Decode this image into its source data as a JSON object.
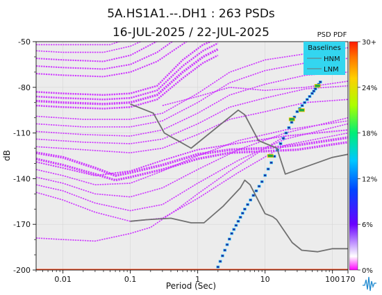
{
  "chart_data": {
    "type": "heatmap",
    "title": "5A.HS1A1.--.DH1 : 263 PSDs",
    "subtitle": "16-JUL-2025 / 22-JUL-2025",
    "xlabel": "Period (Sec)",
    "ylabel": "dB",
    "x_scale": "log",
    "xlim": [
      0.004,
      170
    ],
    "ylim": [
      -200,
      -50
    ],
    "x_ticks": [
      {
        "value": 0.01,
        "label": "0.01"
      },
      {
        "value": 0.1,
        "label": "0.1"
      },
      {
        "value": 1,
        "label": "1"
      },
      {
        "value": 10,
        "label": "10"
      },
      {
        "value": 100,
        "label": "100"
      },
      {
        "value": 170,
        "label": "170"
      }
    ],
    "y_ticks": [
      {
        "value": -50,
        "label": "-50"
      },
      {
        "value": -80,
        "label": "-80"
      },
      {
        "value": -110,
        "label": "-110"
      },
      {
        "value": -140,
        "label": "-140"
      },
      {
        "value": -170,
        "label": "-170"
      },
      {
        "value": -200,
        "label": "-200"
      }
    ],
    "colorbar": {
      "title": "PSD PDF",
      "ticks": [
        "30+",
        "24%",
        "18%",
        "12%",
        "6%",
        "0%"
      ]
    },
    "legend": {
      "title": "Baselines",
      "position": "top-right",
      "entries": [
        "HNM",
        "LNM"
      ],
      "background": "#33d6f0"
    },
    "colors": {
      "psd_band": "#cc33ff",
      "baseline": "#707070",
      "plot_background": "#ececec"
    },
    "baselines": {
      "HNM": {
        "points": [
          [
            0.1,
            -91
          ],
          [
            0.22,
            -97
          ],
          [
            0.32,
            -110
          ],
          [
            0.8,
            -120
          ],
          [
            4,
            -95
          ],
          [
            5,
            -98
          ],
          [
            8,
            -115
          ],
          [
            15,
            -120
          ],
          [
            20,
            -137
          ],
          [
            100,
            -126
          ],
          [
            170,
            -124
          ]
        ]
      },
      "LNM": {
        "points": [
          [
            0.1,
            -168
          ],
          [
            0.17,
            -167
          ],
          [
            0.4,
            -166
          ],
          [
            0.8,
            -169
          ],
          [
            1.24,
            -169
          ],
          [
            2.4,
            -158
          ],
          [
            4.3,
            -146
          ],
          [
            5,
            -141
          ],
          [
            6,
            -144
          ],
          [
            10,
            -163
          ],
          [
            13,
            -165
          ],
          [
            14.9,
            -167
          ],
          [
            25.3,
            -182
          ],
          [
            35,
            -187
          ],
          [
            60,
            -188
          ],
          [
            100,
            -186
          ],
          [
            170,
            -186
          ]
        ]
      }
    },
    "psd_bands": [
      {
        "pct": 6,
        "points": [
          [
            0.004,
            -83
          ],
          [
            0.01,
            -84
          ],
          [
            0.04,
            -85
          ],
          [
            0.1,
            -84
          ],
          [
            0.25,
            -79
          ],
          [
            0.6,
            -62
          ],
          [
            1.2,
            -52
          ],
          [
            2,
            -48
          ]
        ]
      },
      {
        "pct": 6,
        "points": [
          [
            0.004,
            -86
          ],
          [
            0.01,
            -87
          ],
          [
            0.04,
            -88
          ],
          [
            0.1,
            -87
          ],
          [
            0.25,
            -82
          ],
          [
            0.6,
            -66
          ],
          [
            1.2,
            -56
          ],
          [
            2,
            -51
          ]
        ]
      },
      {
        "pct": 8,
        "points": [
          [
            0.004,
            -89
          ],
          [
            0.01,
            -90
          ],
          [
            0.04,
            -91
          ],
          [
            0.1,
            -90
          ],
          [
            0.25,
            -85
          ],
          [
            0.6,
            -70
          ],
          [
            1.2,
            -60
          ],
          [
            2,
            -55
          ]
        ]
      },
      {
        "pct": 6,
        "points": [
          [
            0.004,
            -92
          ],
          [
            0.01,
            -93
          ],
          [
            0.04,
            -94
          ],
          [
            0.1,
            -93
          ],
          [
            0.25,
            -88
          ],
          [
            0.6,
            -74
          ],
          [
            1.2,
            -64
          ],
          [
            2,
            -59
          ]
        ]
      },
      {
        "pct": 5,
        "points": [
          [
            0.004,
            -71
          ],
          [
            0.01,
            -72
          ],
          [
            0.04,
            -73
          ],
          [
            0.1,
            -70
          ],
          [
            0.25,
            -63
          ],
          [
            0.5,
            -54
          ],
          [
            0.8,
            -48
          ]
        ]
      },
      {
        "pct": 5,
        "points": [
          [
            0.004,
            -66
          ],
          [
            0.01,
            -67
          ],
          [
            0.04,
            -68
          ],
          [
            0.1,
            -65
          ],
          [
            0.25,
            -57
          ],
          [
            0.45,
            -49
          ]
        ]
      },
      {
        "pct": 5,
        "points": [
          [
            0.004,
            -61
          ],
          [
            0.01,
            -62
          ],
          [
            0.04,
            -63
          ],
          [
            0.1,
            -59
          ],
          [
            0.2,
            -52
          ],
          [
            0.3,
            -48
          ]
        ]
      },
      {
        "pct": 4,
        "points": [
          [
            0.004,
            -56
          ],
          [
            0.01,
            -57
          ],
          [
            0.04,
            -57
          ],
          [
            0.1,
            -53
          ],
          [
            0.18,
            -48
          ]
        ]
      },
      {
        "pct": 4,
        "points": [
          [
            0.004,
            -52
          ],
          [
            0.01,
            -52
          ],
          [
            0.05,
            -52
          ],
          [
            0.08,
            -49
          ]
        ]
      },
      {
        "pct": 4,
        "points": [
          [
            0.004,
            -99
          ],
          [
            0.02,
            -101
          ],
          [
            0.1,
            -101
          ],
          [
            0.3,
            -97
          ],
          [
            1,
            -84
          ],
          [
            3,
            -70
          ],
          [
            10,
            -62
          ],
          [
            40,
            -58
          ],
          [
            170,
            -54
          ]
        ]
      },
      {
        "pct": 4,
        "points": [
          [
            0.004,
            -104
          ],
          [
            0.02,
            -106
          ],
          [
            0.1,
            -106
          ],
          [
            0.3,
            -102
          ],
          [
            1,
            -90
          ],
          [
            3,
            -77
          ],
          [
            10,
            -69
          ],
          [
            40,
            -64
          ],
          [
            170,
            -61
          ]
        ]
      },
      {
        "pct": 4,
        "points": [
          [
            0.004,
            -109
          ],
          [
            0.02,
            -111
          ],
          [
            0.1,
            -112
          ],
          [
            0.3,
            -108
          ],
          [
            1,
            -97
          ],
          [
            3,
            -85
          ],
          [
            10,
            -78
          ],
          [
            40,
            -72
          ],
          [
            170,
            -70
          ]
        ]
      },
      {
        "pct": 4,
        "points": [
          [
            0.004,
            -114
          ],
          [
            0.02,
            -116
          ],
          [
            0.1,
            -117
          ],
          [
            0.3,
            -114
          ],
          [
            1,
            -104
          ],
          [
            3,
            -93
          ],
          [
            10,
            -87
          ],
          [
            40,
            -81
          ],
          [
            170,
            -79
          ]
        ]
      },
      {
        "pct": 4,
        "points": [
          [
            0.004,
            -119
          ],
          [
            0.02,
            -121
          ],
          [
            0.1,
            -123
          ],
          [
            0.3,
            -120
          ],
          [
            1,
            -111
          ],
          [
            3,
            -101
          ],
          [
            10,
            -96
          ],
          [
            40,
            -90
          ],
          [
            170,
            -88
          ]
        ]
      },
      {
        "pct": 4,
        "points": [
          [
            0.3,
            -92
          ],
          [
            1,
            -86
          ],
          [
            3,
            -80
          ],
          [
            10,
            -82
          ],
          [
            40,
            -80
          ],
          [
            170,
            -76
          ]
        ]
      },
      {
        "pct": 9,
        "points": [
          [
            0.004,
            -123
          ],
          [
            0.01,
            -126
          ],
          [
            0.03,
            -133
          ],
          [
            0.06,
            -138
          ],
          [
            0.1,
            -136
          ],
          [
            0.3,
            -131
          ],
          [
            1,
            -124
          ],
          [
            3,
            -121
          ],
          [
            10,
            -120
          ],
          [
            30,
            -118
          ],
          [
            170,
            -113
          ]
        ]
      },
      {
        "pct": 8,
        "points": [
          [
            0.004,
            -127
          ],
          [
            0.01,
            -131
          ],
          [
            0.03,
            -137
          ],
          [
            0.06,
            -141
          ],
          [
            0.1,
            -139
          ],
          [
            0.3,
            -134
          ],
          [
            1,
            -127
          ],
          [
            3,
            -123
          ],
          [
            10,
            -122
          ],
          [
            30,
            -121
          ],
          [
            170,
            -116
          ]
        ]
      },
      {
        "pct": 5,
        "points": [
          [
            0.004,
            -129
          ],
          [
            0.01,
            -133
          ],
          [
            0.03,
            -138
          ],
          [
            0.1,
            -135
          ],
          [
            0.3,
            -128
          ],
          [
            1,
            -121
          ],
          [
            5,
            -116
          ],
          [
            20,
            -112
          ],
          [
            170,
            -108
          ]
        ]
      },
      {
        "pct": 4,
        "points": [
          [
            0.004,
            -134
          ],
          [
            0.01,
            -138
          ],
          [
            0.03,
            -144
          ],
          [
            0.1,
            -143
          ],
          [
            0.3,
            -135
          ],
          [
            1,
            -125
          ],
          [
            4,
            -115
          ],
          [
            20,
            -108
          ],
          [
            170,
            -102
          ]
        ]
      },
      {
        "pct": 4,
        "points": [
          [
            0.004,
            -139
          ],
          [
            0.01,
            -143
          ],
          [
            0.03,
            -150
          ],
          [
            0.1,
            -152
          ],
          [
            0.3,
            -146
          ],
          [
            1,
            -134
          ],
          [
            4,
            -121
          ],
          [
            20,
            -110
          ],
          [
            170,
            -100
          ]
        ]
      },
      {
        "pct": 4,
        "points": [
          [
            0.004,
            -144
          ],
          [
            0.01,
            -148
          ],
          [
            0.03,
            -156
          ],
          [
            0.1,
            -161
          ],
          [
            0.3,
            -157
          ],
          [
            1,
            -143
          ],
          [
            4,
            -128
          ],
          [
            20,
            -114
          ],
          [
            170,
            -104
          ]
        ]
      },
      {
        "pct": 4,
        "points": [
          [
            0.004,
            -149
          ],
          [
            0.01,
            -154
          ],
          [
            0.03,
            -162
          ],
          [
            0.1,
            -168
          ],
          [
            0.3,
            -166
          ],
          [
            1,
            -153
          ],
          [
            4,
            -136
          ],
          [
            20,
            -118
          ],
          [
            170,
            -110
          ]
        ]
      },
      {
        "pct": 4,
        "points": [
          [
            0.004,
            -179
          ],
          [
            0.01,
            -180
          ],
          [
            0.03,
            -181
          ],
          [
            0.1,
            -176
          ],
          [
            0.2,
            -172
          ],
          [
            0.5,
            -160
          ],
          [
            1,
            -150
          ],
          [
            3,
            -135
          ],
          [
            10,
            -120
          ],
          [
            20,
            -112
          ]
        ]
      },
      {
        "pct": 3,
        "points": [
          [
            0.004,
            -200
          ],
          [
            170,
            -200
          ]
        ]
      }
    ],
    "resonance_trend": {
      "points": [
        [
          2,
          -198
        ],
        [
          3.2,
          -176
        ],
        [
          5,
          -160
        ],
        [
          9,
          -142
        ],
        [
          17,
          -117
        ],
        [
          30,
          -96
        ],
        [
          50,
          -84
        ],
        [
          70,
          -75
        ]
      ],
      "hot_points": [
        [
          12,
          -125
        ],
        [
          25,
          -101
        ],
        [
          35,
          -95
        ],
        [
          60,
          -79
        ]
      ]
    }
  }
}
